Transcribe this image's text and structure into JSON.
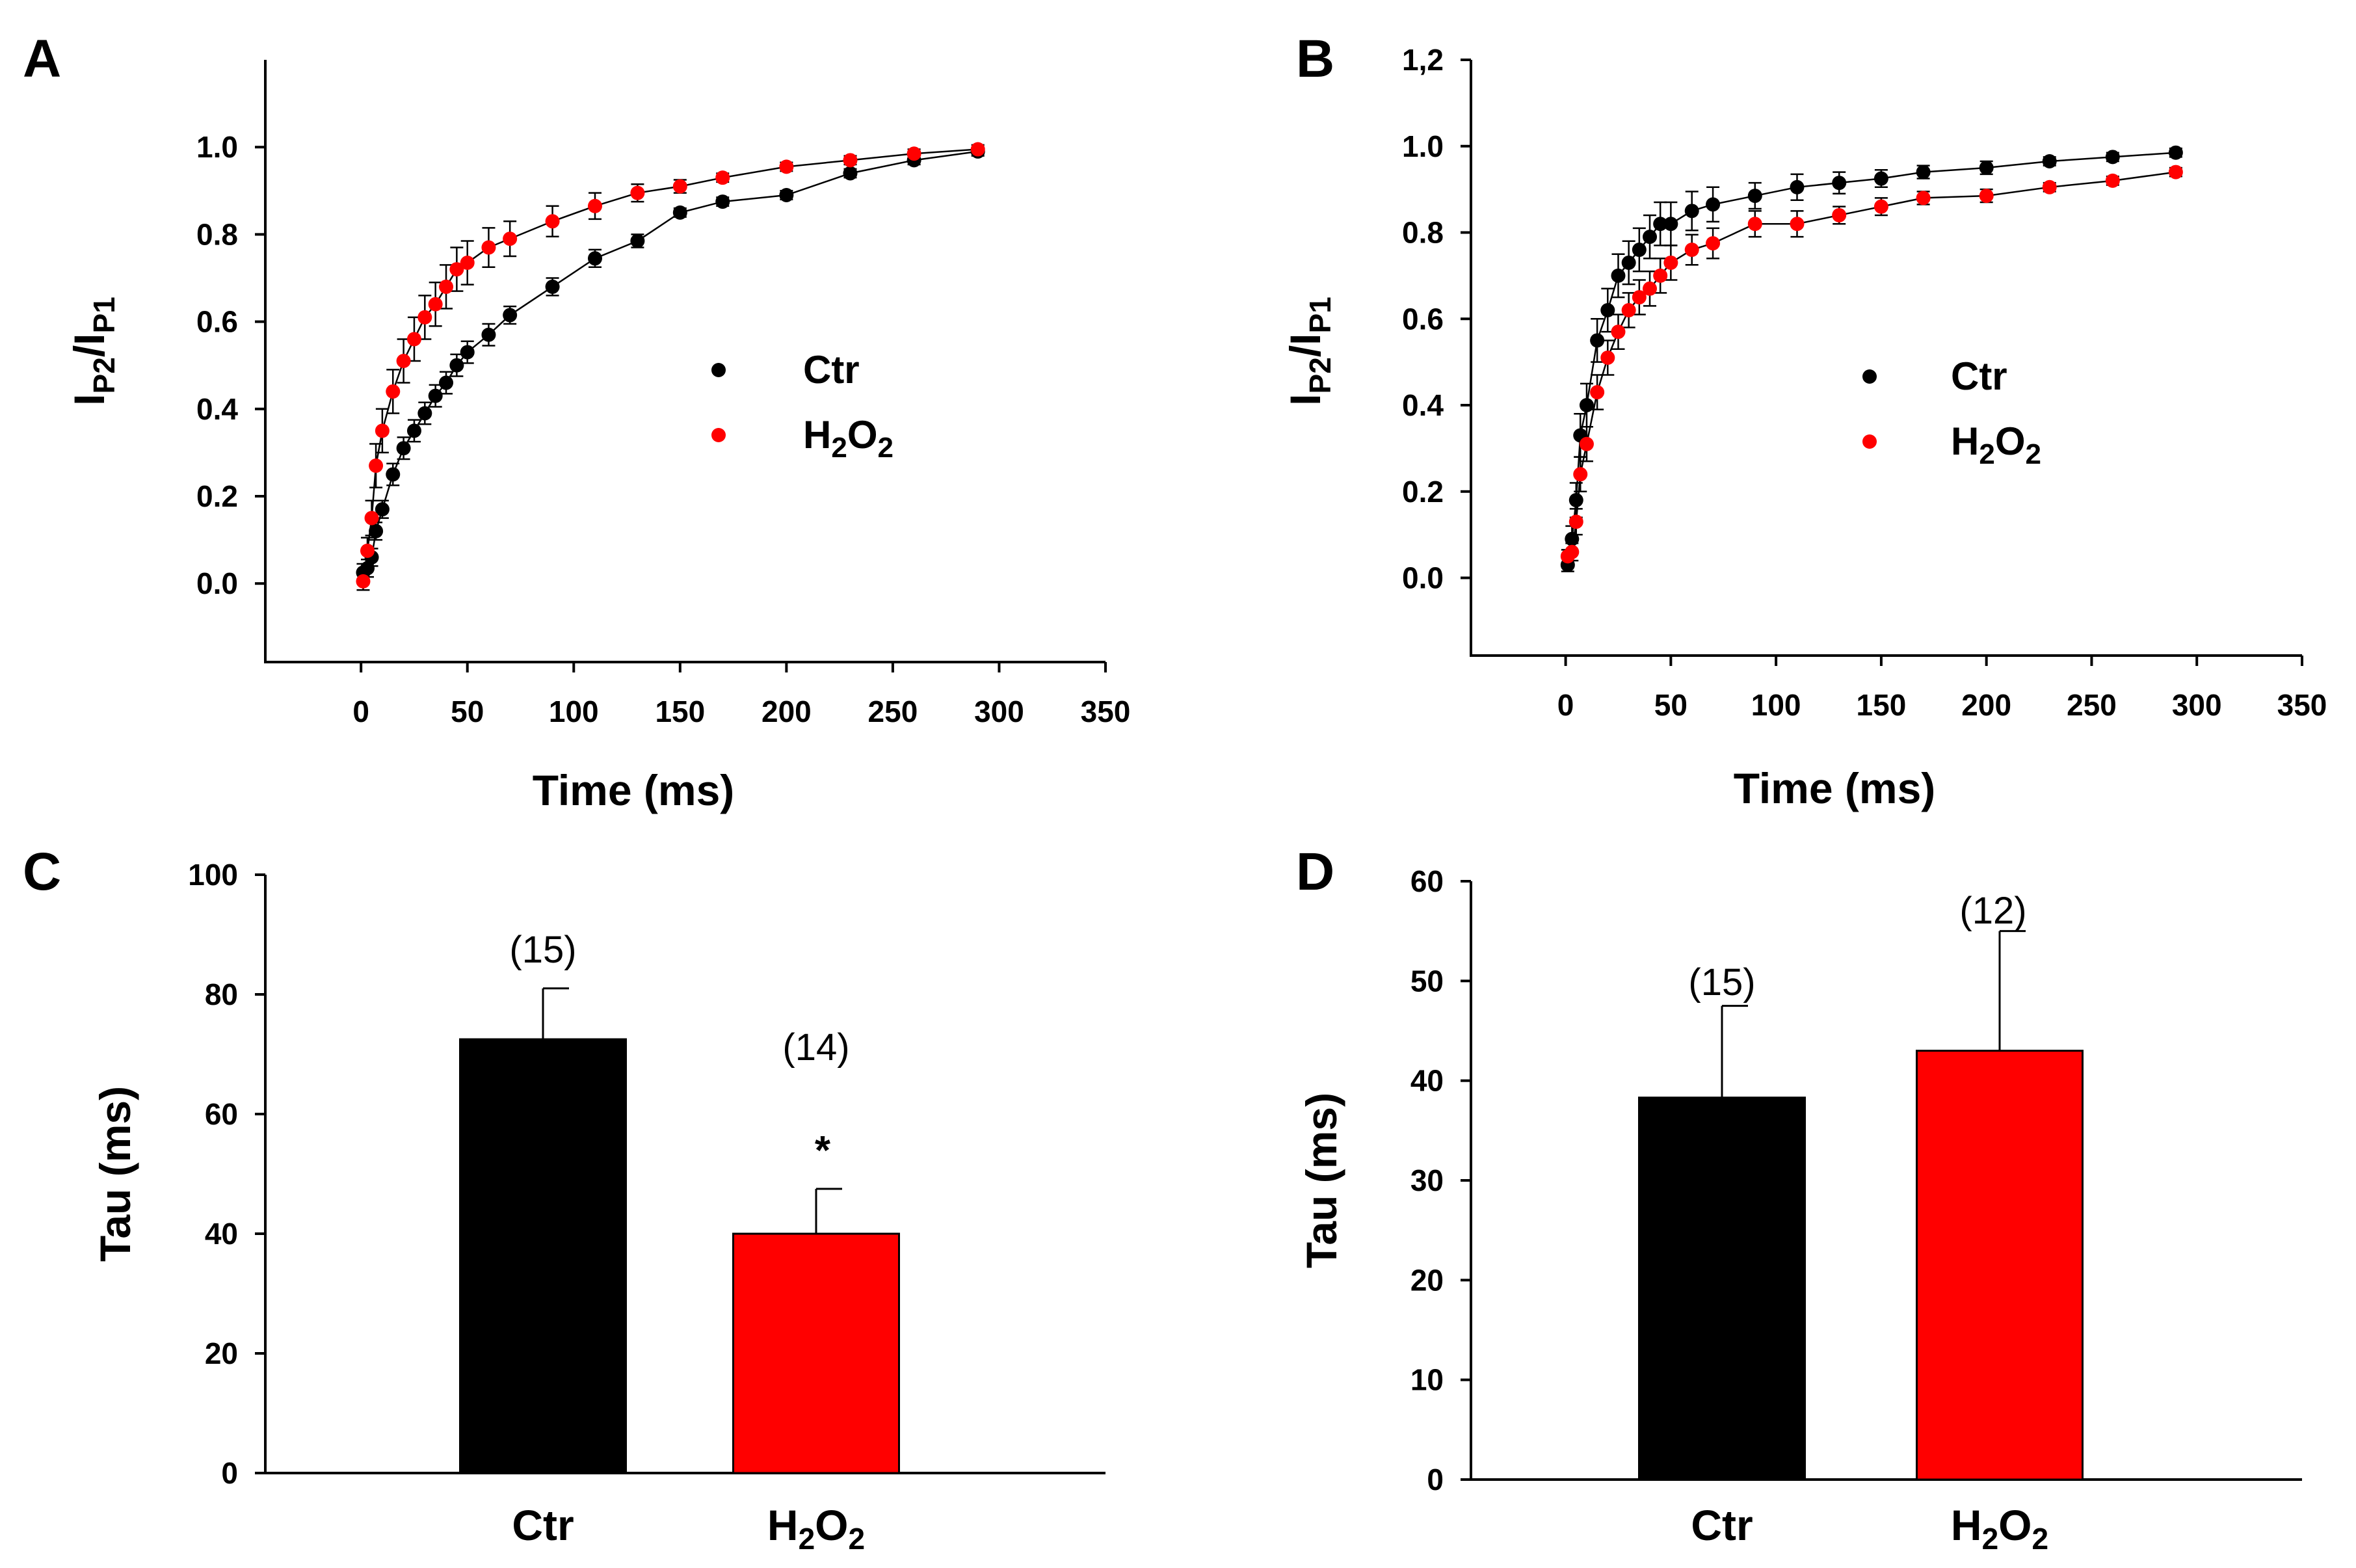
{
  "colors": {
    "ctr": "#000000",
    "h2o2": "#ff0000"
  },
  "chart_data": [
    {
      "panel": "A",
      "type": "scatter",
      "xlabel": "Time (ms)",
      "ylabel": {
        "main": "I",
        "sub1": "P2",
        "slash": "/I",
        "sub2": "P1"
      },
      "xlim": [
        -45,
        350
      ],
      "ylim": [
        -0.18,
        1.2
      ],
      "xticks": [
        "0",
        "50",
        "100",
        "150",
        "200",
        "250",
        "300",
        "350"
      ],
      "yticks": [
        "0.0",
        "0.2",
        "0.4",
        "0.6",
        "0.8",
        "1.0"
      ],
      "legend": [
        {
          "key": "ctr",
          "label": "Ctr"
        },
        {
          "key": "h2o2",
          "label": "H",
          "sub": "2",
          "label2": "O",
          "sub2": "2"
        }
      ],
      "series": [
        {
          "key": "ctr",
          "name": "Ctr",
          "x": [
            1,
            3,
            5,
            7,
            10,
            15,
            20,
            25,
            30,
            35,
            40,
            45,
            50,
            60,
            70,
            90,
            110,
            130,
            150,
            170,
            200,
            230,
            260,
            290
          ],
          "y": [
            0.025,
            0.035,
            0.06,
            0.12,
            0.17,
            0.25,
            0.31,
            0.35,
            0.39,
            0.43,
            0.46,
            0.5,
            0.53,
            0.57,
            0.615,
            0.68,
            0.745,
            0.785,
            0.85,
            0.875,
            0.89,
            0.94,
            0.97,
            0.99
          ],
          "err": [
            0.02,
            0.02,
            0.02,
            0.02,
            0.02,
            0.025,
            0.025,
            0.025,
            0.025,
            0.025,
            0.025,
            0.025,
            0.025,
            0.025,
            0.02,
            0.02,
            0.02,
            0.015,
            0.01,
            0.01,
            0.01,
            0.01,
            0.01,
            0.01
          ]
        },
        {
          "key": "h2o2",
          "name": "H2O2",
          "x": [
            1,
            3,
            5,
            7,
            10,
            15,
            20,
            25,
            30,
            35,
            40,
            45,
            50,
            60,
            70,
            90,
            110,
            130,
            150,
            170,
            200,
            230,
            260,
            290
          ],
          "y": [
            0.005,
            0.075,
            0.15,
            0.27,
            0.35,
            0.44,
            0.51,
            0.56,
            0.61,
            0.64,
            0.68,
            0.72,
            0.735,
            0.77,
            0.79,
            0.83,
            0.865,
            0.895,
            0.91,
            0.93,
            0.955,
            0.97,
            0.985,
            0.995
          ],
          "err": [
            0.02,
            0.03,
            0.04,
            0.05,
            0.05,
            0.05,
            0.05,
            0.05,
            0.05,
            0.05,
            0.05,
            0.05,
            0.05,
            0.045,
            0.04,
            0.035,
            0.03,
            0.02,
            0.015,
            0.01,
            0.01,
            0.01,
            0.01,
            0.01
          ]
        }
      ]
    },
    {
      "panel": "B",
      "type": "scatter",
      "xlabel": "Time (ms)",
      "ylabel": {
        "main": "I",
        "sub1": "P2",
        "slash": "/I",
        "sub2": "P1"
      },
      "xlim": [
        -45,
        350
      ],
      "ylim": [
        -0.18,
        1.2
      ],
      "xticks": [
        "0",
        "50",
        "100",
        "150",
        "200",
        "250",
        "300",
        "350"
      ],
      "yticks": [
        "0.0",
        "0.2",
        "0.4",
        "0.6",
        "0.8",
        "1.0",
        "1,2"
      ],
      "legend": [
        {
          "key": "ctr",
          "label": "Ctr"
        },
        {
          "key": "h2o2",
          "label": "H",
          "sub": "2",
          "label2": "O",
          "sub2": "2"
        }
      ],
      "series": [
        {
          "key": "ctr",
          "name": "Ctr",
          "x": [
            1,
            3,
            5,
            7,
            10,
            15,
            20,
            25,
            30,
            35,
            40,
            45,
            50,
            60,
            70,
            90,
            110,
            130,
            150,
            170,
            200,
            230,
            260,
            290
          ],
          "y": [
            0.03,
            0.09,
            0.18,
            0.33,
            0.4,
            0.55,
            0.62,
            0.7,
            0.73,
            0.76,
            0.79,
            0.82,
            0.82,
            0.85,
            0.865,
            0.885,
            0.905,
            0.915,
            0.925,
            0.94,
            0.95,
            0.965,
            0.975,
            0.985
          ],
          "err": [
            0.015,
            0.03,
            0.04,
            0.05,
            0.05,
            0.05,
            0.05,
            0.05,
            0.05,
            0.05,
            0.05,
            0.05,
            0.05,
            0.045,
            0.04,
            0.03,
            0.03,
            0.025,
            0.02,
            0.015,
            0.015,
            0.01,
            0.01,
            0.01
          ]
        },
        {
          "key": "h2o2",
          "name": "H2O2",
          "x": [
            1,
            3,
            5,
            7,
            10,
            15,
            20,
            25,
            30,
            35,
            40,
            45,
            50,
            60,
            70,
            90,
            110,
            130,
            150,
            170,
            200,
            230,
            260,
            290
          ],
          "y": [
            0.05,
            0.06,
            0.13,
            0.24,
            0.31,
            0.43,
            0.51,
            0.57,
            0.62,
            0.65,
            0.67,
            0.7,
            0.73,
            0.76,
            0.775,
            0.82,
            0.82,
            0.84,
            0.86,
            0.88,
            0.885,
            0.905,
            0.92,
            0.94
          ],
          "err": [
            0.015,
            0.02,
            0.03,
            0.04,
            0.04,
            0.04,
            0.04,
            0.04,
            0.04,
            0.04,
            0.04,
            0.04,
            0.04,
            0.035,
            0.035,
            0.03,
            0.03,
            0.02,
            0.02,
            0.015,
            0.015,
            0.01,
            0.01,
            0.01
          ]
        }
      ]
    },
    {
      "panel": "C",
      "type": "bar",
      "ylabel": "Tau (ms)",
      "ylim": [
        0,
        100
      ],
      "yticks": [
        "0",
        "20",
        "40",
        "60",
        "80",
        "100"
      ],
      "categories": [
        {
          "key": "ctr",
          "label": "Ctr",
          "value": 72.5,
          "err": 8.5,
          "n": "(15)",
          "sig": ""
        },
        {
          "key": "h2o2",
          "label": "H",
          "sub": "2",
          "label2": "O",
          "sub2": "2",
          "value": 40,
          "err": 7.5,
          "n": "(14)",
          "sig": "*"
        }
      ]
    },
    {
      "panel": "D",
      "type": "bar",
      "ylabel": "Tau (ms)",
      "ylim": [
        0,
        60
      ],
      "yticks": [
        "0",
        "10",
        "20",
        "30",
        "40",
        "50",
        "60"
      ],
      "categories": [
        {
          "key": "ctr",
          "label": "Ctr",
          "value": 38.3,
          "err": 9.2,
          "n": "(15)",
          "sig": ""
        },
        {
          "key": "h2o2",
          "label": "H",
          "sub": "2",
          "label2": "O",
          "sub2": "2",
          "value": 43,
          "err": 12,
          "n": "(12)",
          "sig": ""
        }
      ]
    }
  ]
}
